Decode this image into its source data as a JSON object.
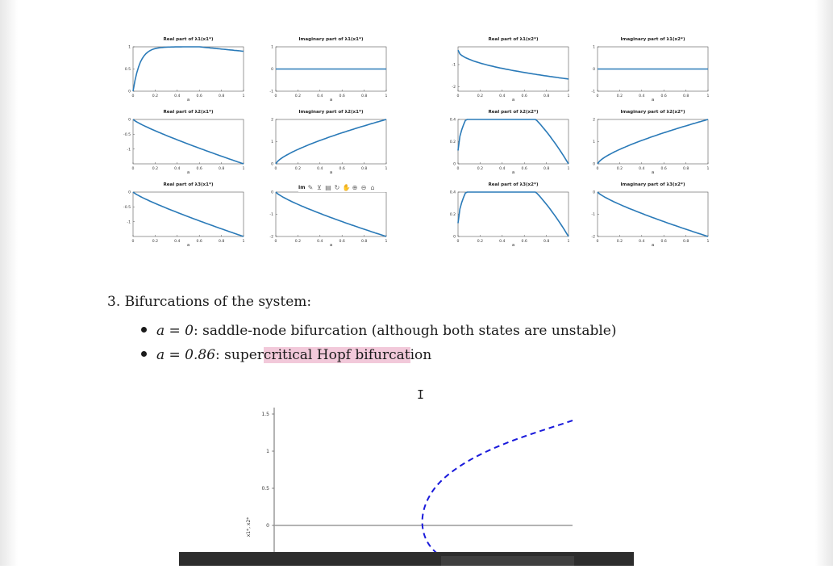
{
  "eigen_plots": [
    {
      "title": "Real part of λ1(x1*)",
      "xlabel": "a",
      "curve": "real1_left",
      "yticks": [
        "1",
        "0.5",
        "0"
      ],
      "yrange": [
        0,
        1
      ]
    },
    {
      "title": "Imaginary part of λ1(x1*)",
      "xlabel": "a",
      "curve": "flat",
      "yticks": [
        "1",
        "0",
        "-1"
      ],
      "yrange": [
        -1,
        1
      ]
    },
    {
      "title": "Real part of λ1(x2*)",
      "xlabel": "a",
      "curve": "real1_right",
      "yticks": [
        "-1",
        "-2"
      ],
      "yrange": [
        -2.2,
        -0.2
      ]
    },
    {
      "title": "Imaginary part of λ1(x2*)",
      "xlabel": "a",
      "curve": "flat",
      "yticks": [
        "1",
        "0",
        "-1"
      ],
      "yrange": [
        -1,
        1
      ]
    },
    {
      "title": "Real part of λ2(x1*)",
      "xlabel": "a",
      "curve": "real2_left",
      "yticks": [
        "0",
        "-0.5",
        "-1"
      ],
      "yrange": [
        -1.5,
        0
      ]
    },
    {
      "title": "Imaginary part of λ2(x1*)",
      "xlabel": "a",
      "curve": "imag_up",
      "yticks": [
        "2",
        "1",
        "0"
      ],
      "yrange": [
        0,
        2
      ]
    },
    {
      "title": "Real part of λ2(x2*)",
      "xlabel": "a",
      "curve": "arch",
      "yticks": [
        "0.4",
        "0.2",
        "0"
      ],
      "yrange": [
        0,
        0.4
      ]
    },
    {
      "title": "Imaginary part of λ2(x2*)",
      "xlabel": "a",
      "curve": "imag_up",
      "yticks": [
        "2",
        "1",
        "0"
      ],
      "yrange": [
        0,
        2
      ]
    },
    {
      "title": "Real part of λ3(x1*)",
      "xlabel": "a",
      "curve": "real2_left",
      "yticks": [
        "0",
        "-0.5",
        "-1"
      ],
      "yrange": [
        -1.5,
        0
      ]
    },
    {
      "title": "Im",
      "xlabel": "a",
      "curve": "imag_down",
      "yticks": [
        "0",
        "-1",
        "-2"
      ],
      "yrange": [
        -2,
        0
      ]
    },
    {
      "title": "Real part of λ3(x2*)",
      "xlabel": "a",
      "curve": "arch",
      "yticks": [
        "0.4",
        "0.2",
        "0"
      ],
      "yrange": [
        0,
        0.4
      ]
    },
    {
      "title": "Imaginary part of λ3(x2*)",
      "xlabel": "a",
      "curve": "imag_down",
      "yticks": [
        "0",
        "-1",
        "-2"
      ],
      "yrange": [
        -2,
        0
      ]
    }
  ],
  "xticks": [
    "0",
    "0.2",
    "0.4",
    "0.6",
    "0.8",
    "1"
  ],
  "section_title": "3. Bifurcations of the system:",
  "bullets": [
    {
      "math": "a = 0",
      "text": ": saddle-node bifurcation (although both states are unstable)"
    },
    {
      "math": "a = 0.86",
      "pre": ": super",
      "highlight": "critical Hopf bifurcat",
      "post": "ion"
    }
  ],
  "bif_plot": {
    "ylabel": "x1*, x2*",
    "yticks": [
      "1.5",
      "1",
      "0.5",
      "0"
    ]
  },
  "colors": {
    "curve": "#2a7ab8",
    "dashed": "#1a1adb",
    "highlight": "#f2c9da"
  }
}
